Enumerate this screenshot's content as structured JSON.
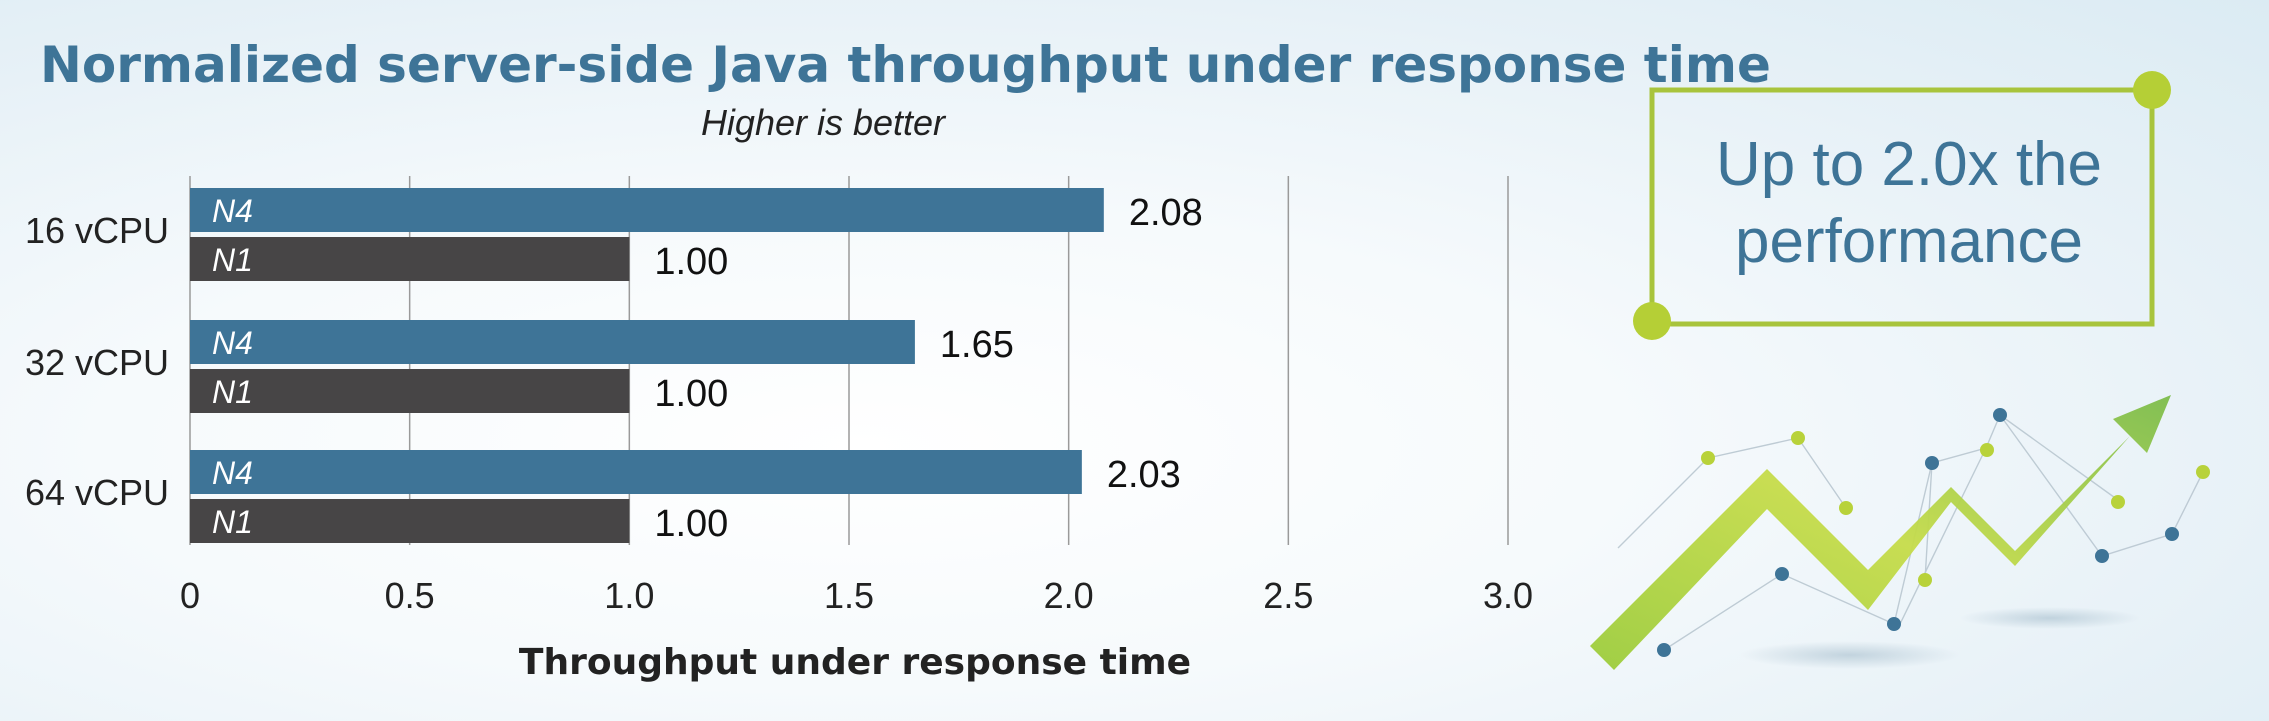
{
  "chart_data": {
    "type": "bar",
    "orientation": "horizontal",
    "title": "Normalized server-side Java throughput under response time",
    "subtitle": "Higher is better",
    "xlabel": "Throughput under response time",
    "ylabel": "",
    "xlim": [
      0,
      3.0
    ],
    "xticks": [
      "0",
      "0.5",
      "1.0",
      "1.5",
      "2.0",
      "2.5",
      "3.0"
    ],
    "xtick_values": [
      0,
      0.5,
      1.0,
      1.5,
      2.0,
      2.5,
      3.0
    ],
    "grid": true,
    "categories": [
      "16 vCPU",
      "32 vCPU",
      "64 vCPU"
    ],
    "series": [
      {
        "name": "N4",
        "color": "#3e7497",
        "values": [
          2.08,
          1.65,
          2.03
        ],
        "value_labels": [
          "2.08",
          "1.65",
          "2.03"
        ]
      },
      {
        "name": "N1",
        "color": "#474546",
        "values": [
          1.0,
          1.0,
          1.0
        ],
        "value_labels": [
          "1.00",
          "1.00",
          "1.00"
        ]
      }
    ]
  },
  "callout": {
    "lines": [
      "Up to 2.0x the",
      "performance"
    ],
    "border_color": "#a8c43c",
    "text_color": "#3e7497"
  },
  "decoration": {
    "icon": "rising-arrow-network-icon",
    "arrow_color": "#8cc04a",
    "dot_colors": [
      "#b8d23a",
      "#3e7497"
    ]
  }
}
